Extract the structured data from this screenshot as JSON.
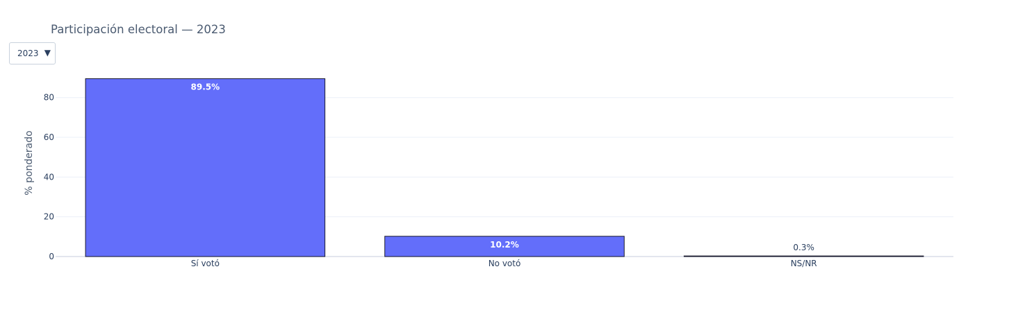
{
  "title": "Participación electoral — 2023",
  "dropdown": {
    "selected": "2023",
    "arrow_icon": "triangle-down-icon"
  },
  "colors": {
    "bar": "#636efa",
    "bar_outline": "#1a1a2e",
    "grid": "#ebf0f8",
    "text": "#2a3f5f"
  },
  "chart_data": {
    "type": "bar",
    "categories": [
      "Sí votó",
      "No votó",
      "NS/NR"
    ],
    "values": [
      89.5,
      10.2,
      0.3
    ],
    "data_labels": [
      "89.5%",
      "10.2%",
      "0.3%"
    ],
    "xlabel": "",
    "ylabel": "% ponderado",
    "ylim": [
      0,
      94.2
    ],
    "yticks": [
      0,
      20,
      40,
      60,
      80
    ],
    "grid": true,
    "legend": "none"
  }
}
